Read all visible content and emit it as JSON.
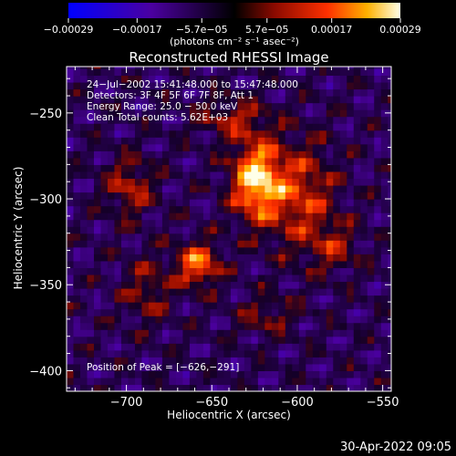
{
  "chart_data": {
    "type": "heatmap",
    "title": "Reconstructed RHESSI Image",
    "xlabel": "Heliocentric X (arcsec)",
    "ylabel": "Heliocentric Y (arcsec)",
    "xlim": [
      -735,
      -545
    ],
    "ylim": [
      -412,
      -223
    ],
    "x_ticks": [
      -700,
      -650,
      -600,
      -550
    ],
    "x_tick_labels": [
      "−700",
      "−650",
      "−600",
      "−550"
    ],
    "y_ticks": [
      -250,
      -300,
      -350,
      -400
    ],
    "y_tick_labels": [
      "−250",
      "−300",
      "−350",
      "−400"
    ],
    "colorbar": {
      "min": -0.00029,
      "max": 0.00029,
      "tick_values": [
        -0.00029,
        -0.00017,
        -5.7e-05,
        5.7e-05,
        0.00017,
        0.00029
      ],
      "tick_labels": [
        "−0.00029",
        "−0.00017",
        "−5.7e−05",
        "5.7e−05",
        "0.00017",
        "0.00029"
      ],
      "unit_label": "(photons cm⁻² s⁻¹ asec⁻²)"
    },
    "annotations": [
      "24−Jul−2002 15:41:48.000 to 15:47:48.000",
      "Detectors: 3F 4F 5F 6F 7F 8F, Att 1",
      "Energy Range: 25.0 − 50.0 keV",
      "Clean    Total counts: 5.62E+03"
    ],
    "peak_label": "Position of Peak = [−626,−291]",
    "peak_position": [
      -626,
      -291
    ],
    "peak_value": 0.00029,
    "grid": false,
    "sources": [
      {
        "x": -626,
        "y": -291,
        "sx": 10,
        "sy": 16,
        "amp": 1.0
      },
      {
        "x": -660,
        "y": -340,
        "sx": 9,
        "sy": 9,
        "amp": 0.75
      },
      {
        "x": -600,
        "y": -300,
        "sx": 14,
        "sy": 22,
        "amp": 0.55
      },
      {
        "x": -700,
        "y": -295,
        "sx": 10,
        "sy": 12,
        "amp": 0.45
      },
      {
        "x": -640,
        "y": -255,
        "sx": 14,
        "sy": 8,
        "amp": 0.4
      },
      {
        "x": -580,
        "y": -330,
        "sx": 10,
        "sy": 10,
        "amp": 0.35
      },
      {
        "x": -690,
        "y": -355,
        "sx": 10,
        "sy": 14,
        "amp": 0.35
      },
      {
        "x": -620,
        "y": -370,
        "sx": 12,
        "sy": 8,
        "amp": 0.3
      }
    ]
  },
  "footer": {
    "timestamp": "30-Apr-2022 09:05"
  }
}
